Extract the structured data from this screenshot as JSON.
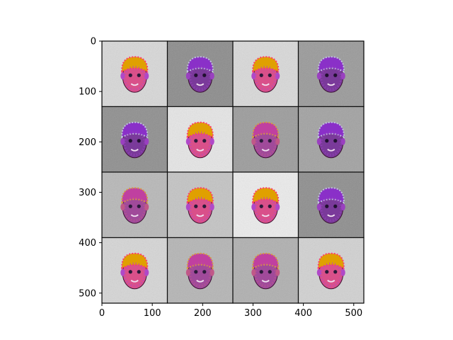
{
  "image_grid": {
    "rows": 4,
    "cols": 4,
    "tile_size": 130,
    "extent": 520,
    "cells": [
      {
        "bg": "#d8d8d8",
        "face": "bright"
      },
      {
        "bg": "#8c8c8c",
        "face": "dark"
      },
      {
        "bg": "#d9d9d9",
        "face": "bright"
      },
      {
        "bg": "#9a9a9a",
        "face": "dark"
      },
      {
        "bg": "#8f8f8f",
        "face": "dark"
      },
      {
        "bg": "#e6e6e6",
        "face": "bright"
      },
      {
        "bg": "#9c9c9c",
        "face": "mid"
      },
      {
        "bg": "#a2a2a2",
        "face": "dark"
      },
      {
        "bg": "#b8b8b8",
        "face": "mid"
      },
      {
        "bg": "#c4c4c4",
        "face": "bright"
      },
      {
        "bg": "#ececec",
        "face": "bright"
      },
      {
        "bg": "#8e8e8e",
        "face": "dark"
      },
      {
        "bg": "#d6d6d6",
        "face": "bright"
      },
      {
        "bg": "#b5b5b5",
        "face": "mid"
      },
      {
        "bg": "#b0b0b0",
        "face": "mid"
      },
      {
        "bg": "#d2d2d2",
        "face": "bright"
      }
    ]
  },
  "axes": {
    "x_ticks": [
      "0",
      "100",
      "200",
      "300",
      "400",
      "500"
    ],
    "x_tick_values": [
      0,
      100,
      200,
      300,
      400,
      500
    ],
    "y_ticks": [
      "0",
      "100",
      "200",
      "300",
      "400",
      "500"
    ],
    "y_tick_values": [
      0,
      100,
      200,
      300,
      400,
      500
    ]
  }
}
